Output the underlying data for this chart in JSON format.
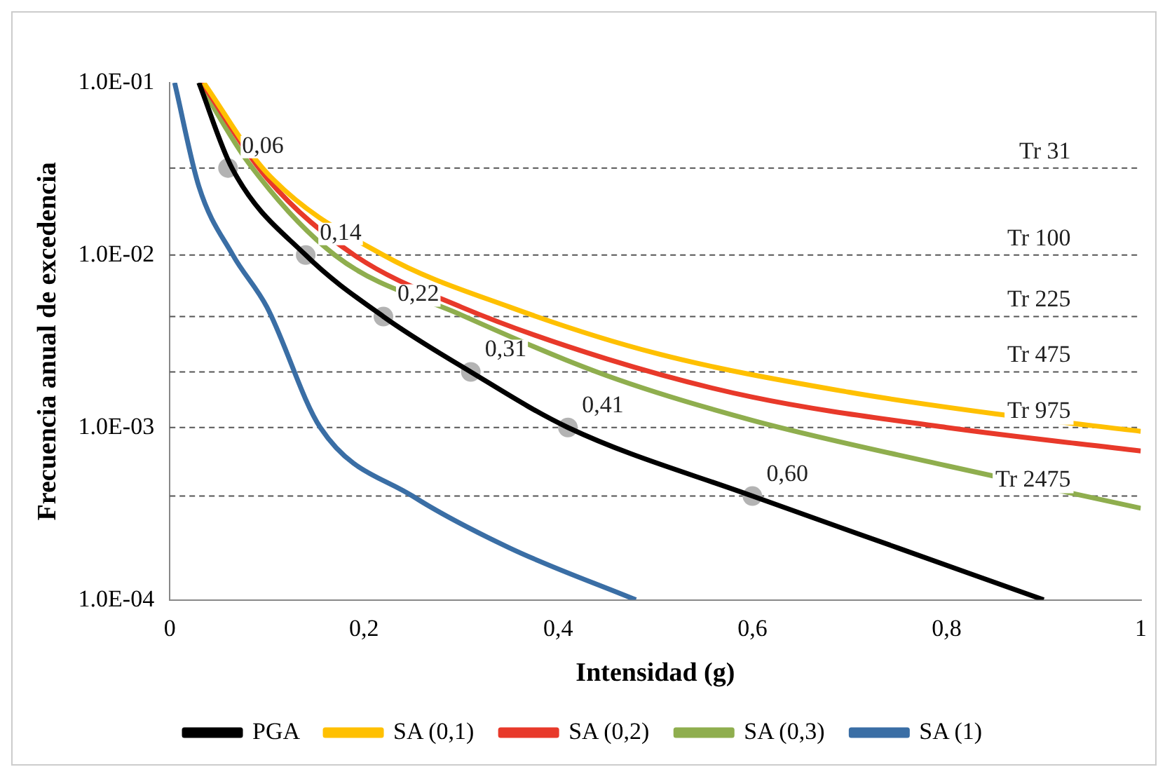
{
  "chart_data": {
    "type": "line",
    "xlabel": "Intensidad (g)",
    "ylabel": "Frecuencia anual de excedencia",
    "log": "y",
    "xlim": [
      0,
      1
    ],
    "ylim": [
      0.0001,
      0.1
    ],
    "xticks": [
      0,
      {
        "value": 0.2,
        "label": "0,2"
      },
      {
        "value": 0.4,
        "label": "0,4"
      },
      {
        "value": 0.6,
        "label": "0,6"
      },
      {
        "value": 0.8,
        "label": "0,8"
      },
      1
    ],
    "yticks": [
      {
        "value": 0.0001,
        "label": "1.0E-04"
      },
      {
        "value": 0.001,
        "label": "1.0E-03"
      },
      {
        "value": 0.01,
        "label": "1.0E-02"
      },
      {
        "value": 0.1,
        "label": "1.0E-01"
      }
    ],
    "grid": false,
    "legend": "bottom",
    "marker": "none",
    "series": [
      {
        "name": "PGA",
        "color": "#000000",
        "x": [
          0.03,
          0.064,
          0.14,
          0.22,
          0.31,
          0.41,
          0.6,
          0.75,
          0.9
        ],
        "values": [
          0.1,
          0.032,
          0.01,
          0.0044,
          0.0021,
          0.001,
          0.0004,
          0.0002,
          0.0001
        ]
      },
      {
        "name": "SA (0,1)",
        "color": "#ffc000",
        "x": [
          0.035,
          0.1,
          0.22,
          0.35,
          0.5,
          0.7,
          0.85,
          1
        ],
        "values": [
          0.1,
          0.03,
          0.01,
          0.005,
          0.0027,
          0.0016,
          0.0012,
          0.00095
        ]
      },
      {
        "name": "SA (0,2)",
        "color": "#e8392a",
        "x": [
          0.033,
          0.1,
          0.19,
          0.3,
          0.45,
          0.6,
          0.8,
          1
        ],
        "values": [
          0.1,
          0.028,
          0.01,
          0.005,
          0.0025,
          0.0015,
          0.001,
          0.00073
        ]
      },
      {
        "name": "SA (0,3)",
        "color": "#8fae4e",
        "x": [
          0.03,
          0.08,
          0.17,
          0.3,
          0.45,
          0.6,
          0.8,
          1
        ],
        "values": [
          0.1,
          0.035,
          0.01,
          0.0045,
          0.002,
          0.0011,
          0.0006,
          0.00034
        ]
      },
      {
        "name": "SA (1)",
        "color": "#3a6ea5",
        "x": [
          0.005,
          0.03,
          0.065,
          0.1,
          0.155,
          0.25,
          0.35,
          0.48
        ],
        "values": [
          0.1,
          0.025,
          0.01,
          0.005,
          0.001,
          0.0004,
          0.0002,
          0.0001
        ]
      },
      {
        "type": "scatter",
        "color": "#b3b3b3",
        "marker": "circle",
        "x": [
          0.06,
          0.14,
          0.22,
          0.31,
          0.41,
          0.6
        ],
        "values": [
          0.032,
          0.01,
          0.0044,
          0.0021,
          0.001,
          0.0004
        ]
      }
    ],
    "annotations": [
      {
        "text": "0,06",
        "x": 0.06,
        "y": 0.032
      },
      {
        "text": "0,14",
        "x": 0.14,
        "y": 0.01
      },
      {
        "text": "0,22",
        "x": 0.22,
        "y": 0.0044
      },
      {
        "text": "0,31",
        "x": 0.31,
        "y": 0.0021
      },
      {
        "text": "0,41",
        "x": 0.41,
        "y": 0.001
      },
      {
        "text": "0,60",
        "x": 0.6,
        "y": 0.0004
      }
    ],
    "ref_lines": [
      {
        "axis": "y",
        "value": 0.032,
        "label": "Tr 31",
        "color": "#555555",
        "line_style": "dashed"
      },
      {
        "axis": "y",
        "value": 0.01,
        "label": "Tr 100",
        "color": "#555555",
        "line_style": "dashed"
      },
      {
        "axis": "y",
        "value": 0.0044,
        "label": "Tr 225",
        "color": "#555555",
        "line_style": "dashed"
      },
      {
        "axis": "y",
        "value": 0.0021,
        "label": "Tr 475",
        "color": "#555555",
        "line_style": "dashed"
      },
      {
        "axis": "y",
        "value": 0.001,
        "label": "Tr 975",
        "color": "#555555",
        "line_style": "dashed"
      },
      {
        "axis": "y",
        "value": 0.0004,
        "label": "Tr 2475",
        "color": "#555555",
        "line_style": "dashed"
      }
    ]
  }
}
